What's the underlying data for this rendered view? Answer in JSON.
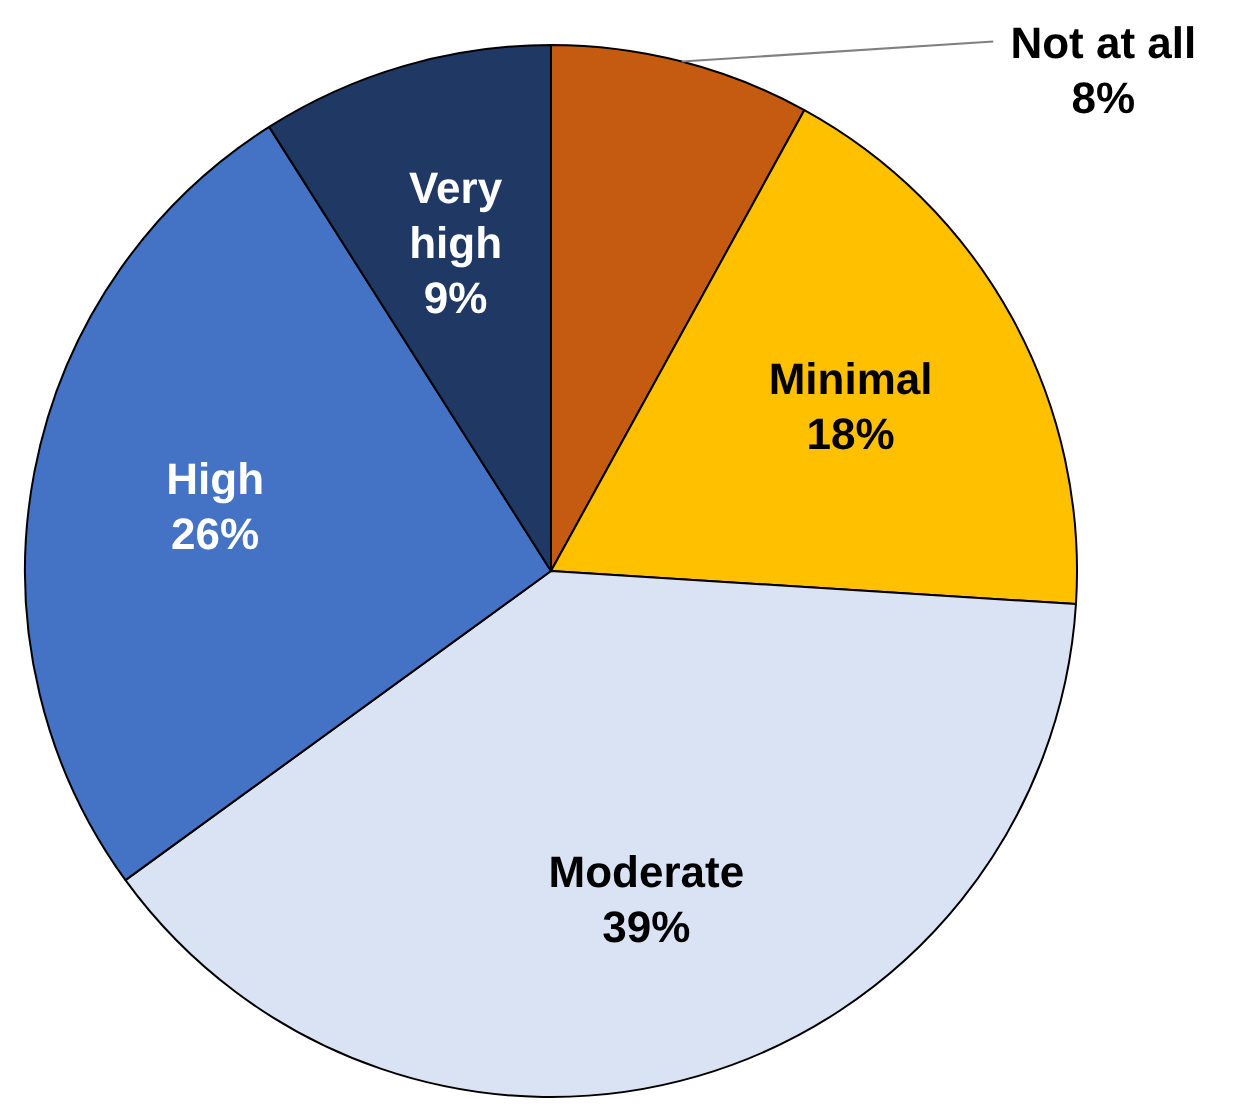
{
  "chart_data": {
    "type": "pie",
    "categories": [
      "Not at all",
      "Minimal",
      "Moderate",
      "High",
      "Very high"
    ],
    "values": [
      8,
      18,
      39,
      26,
      9
    ],
    "colors": [
      "#c55a11",
      "#ffc000",
      "#dae3f3",
      "#4472c4",
      "#1f3864"
    ],
    "value_labels": [
      "8%",
      "18%",
      "39%",
      "26%",
      "9%"
    ]
  }
}
